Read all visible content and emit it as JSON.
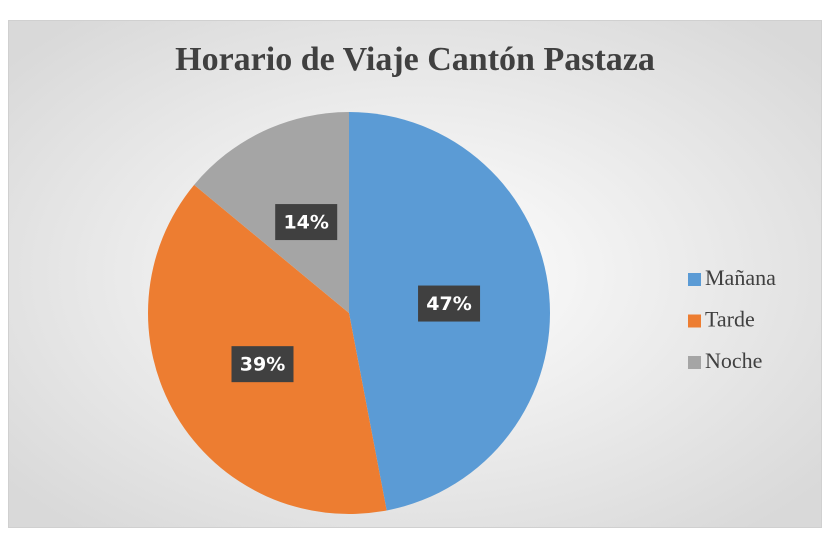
{
  "chart_data": {
    "type": "pie",
    "title": "Horario de Viaje Cantón Pastaza",
    "categories": [
      "Mañana",
      "Tarde",
      "Noche"
    ],
    "values": [
      47,
      39,
      14
    ],
    "value_labels": [
      "47%",
      "39%",
      "14%"
    ],
    "colors": [
      "#5b9bd5",
      "#ed7d31",
      "#a5a5a5"
    ],
    "legend": "right"
  }
}
